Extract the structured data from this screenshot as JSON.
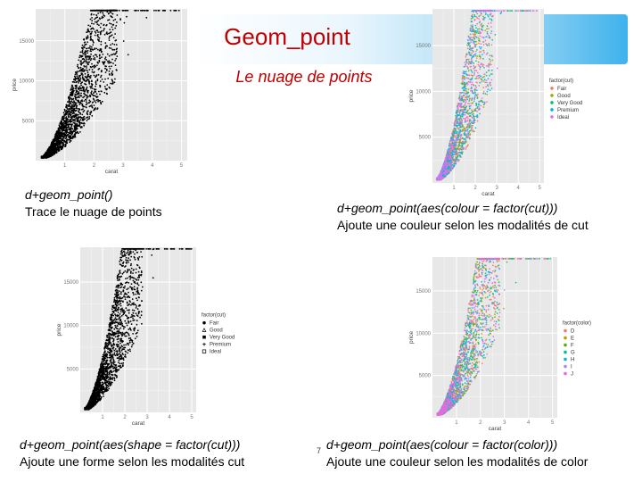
{
  "slide": {
    "title": "Geom_point",
    "subtitle": "Le nuage de points",
    "page_number": "7",
    "colors": {
      "title": "#c00000",
      "banner_accent": "#3fb2ec"
    }
  },
  "captions": [
    {
      "code": "d+geom_point()",
      "text": "Trace le nuage de points"
    },
    {
      "code": "d+geom_point(aes(colour = factor(cut)))",
      "text": "Ajoute une couleur selon les modalités de cut"
    },
    {
      "code": "d+geom_point(aes(shape = factor(cut)))",
      "text": "Ajoute une forme selon les modalités cut"
    },
    {
      "code": "d+geom_point(aes(colour = factor(color)))",
      "text": "Ajoute une couleur selon les modalités de color"
    }
  ],
  "plots": [
    {
      "xlabel": "carat",
      "ylabel": "price",
      "x_ticks": [
        "1",
        "2",
        "3",
        "4",
        "5"
      ],
      "y_ticks": [
        "5000",
        "10000",
        "15000"
      ],
      "legend_title": "",
      "legend": []
    },
    {
      "xlabel": "carat",
      "ylabel": "price",
      "x_ticks": [
        "1",
        "2",
        "3",
        "4",
        "5"
      ],
      "y_ticks": [
        "5000",
        "10000",
        "15000"
      ],
      "legend_title": "factor(cut)",
      "legend": [
        {
          "label": "Fair",
          "color": "#f8766d"
        },
        {
          "label": "Good",
          "color": "#a3a500"
        },
        {
          "label": "Very Good",
          "color": "#00bf7d"
        },
        {
          "label": "Premium",
          "color": "#00b0f6"
        },
        {
          "label": "Ideal",
          "color": "#e76bf3"
        }
      ]
    },
    {
      "xlabel": "carat",
      "ylabel": "price",
      "x_ticks": [
        "1",
        "2",
        "3",
        "4",
        "5"
      ],
      "y_ticks": [
        "5000",
        "10000",
        "15000"
      ],
      "legend_title": "factor(cut)",
      "legend": [
        {
          "label": "Fair",
          "shape": "circle"
        },
        {
          "label": "Good",
          "shape": "triangle"
        },
        {
          "label": "Very Good",
          "shape": "square"
        },
        {
          "label": "Premium",
          "shape": "plus"
        },
        {
          "label": "Ideal",
          "shape": "boxx"
        }
      ]
    },
    {
      "xlabel": "carat",
      "ylabel": "price",
      "x_ticks": [
        "1",
        "2",
        "3",
        "4",
        "5"
      ],
      "y_ticks": [
        "5000",
        "10000",
        "15000"
      ],
      "legend_title": "factor(color)",
      "legend": [
        {
          "label": "D",
          "color": "#f8766d"
        },
        {
          "label": "E",
          "color": "#c49a00"
        },
        {
          "label": "F",
          "color": "#53b400"
        },
        {
          "label": "G",
          "color": "#00c094"
        },
        {
          "label": "H",
          "color": "#00b6eb"
        },
        {
          "label": "I",
          "color": "#a58aff"
        },
        {
          "label": "J",
          "color": "#fb61d7"
        }
      ]
    }
  ]
}
